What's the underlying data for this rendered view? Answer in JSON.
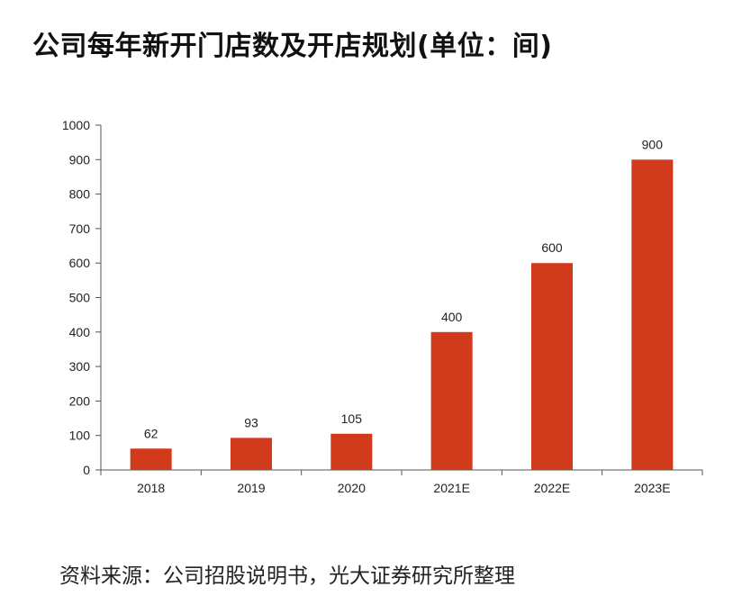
{
  "title": "公司每年新开门店数及开店规划(单位：间)",
  "source": "资料来源：公司招股说明书，光大证券研究所整理",
  "chart_data": {
    "type": "bar",
    "title": "公司每年新开门店数及开店规划(单位：间)",
    "xlabel": "",
    "ylabel": "",
    "categories": [
      "2018",
      "2019",
      "2020",
      "2021E",
      "2022E",
      "2023E"
    ],
    "values": [
      62,
      93,
      105,
      400,
      600,
      900
    ],
    "data_labels": [
      "62",
      "93",
      "105",
      "400",
      "600",
      "900"
    ],
    "ylim": [
      0,
      1000
    ],
    "yticks": [
      0,
      100,
      200,
      300,
      400,
      500,
      600,
      700,
      800,
      900,
      1000
    ],
    "grid": false,
    "bar_color": "#d23a1c"
  }
}
